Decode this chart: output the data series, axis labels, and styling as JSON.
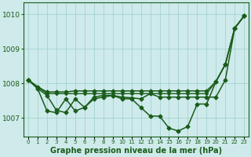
{
  "background_color": "#ceeaea",
  "grid_color": "#9ecece",
  "line_color": "#1a5c1a",
  "title": "Graphe pression niveau de la mer (hPa)",
  "ylabel_ticks": [
    1007,
    1008,
    1009,
    1010
  ],
  "xlim": [
    -0.5,
    23.5
  ],
  "ylim": [
    1006.45,
    1010.35
  ],
  "x_ticks": [
    0,
    1,
    2,
    3,
    4,
    5,
    6,
    7,
    8,
    9,
    10,
    11,
    12,
    13,
    14,
    15,
    16,
    17,
    18,
    19,
    20,
    21,
    22,
    23
  ],
  "series": [
    {
      "x": [
        0,
        1,
        2,
        3,
        4,
        5,
        6,
        7,
        8,
        9,
        10,
        11,
        12,
        13,
        14,
        15,
        16,
        17,
        18,
        19,
        20,
        21,
        22,
        23
      ],
      "y": [
        1008.1,
        1007.9,
        1007.75,
        1007.75,
        1007.75,
        1007.78,
        1007.78,
        1007.78,
        1007.78,
        1007.78,
        1007.78,
        1007.78,
        1007.78,
        1007.78,
        1007.78,
        1007.78,
        1007.78,
        1007.78,
        1007.78,
        1007.78,
        1008.05,
        1008.55,
        1009.6,
        1009.95
      ],
      "marker": "D",
      "markersize": 2.5,
      "linewidth": 1.1
    },
    {
      "x": [
        0,
        1,
        2,
        3,
        4,
        5,
        6,
        7,
        8,
        9,
        10,
        11,
        12,
        13,
        14,
        15,
        16,
        17,
        18,
        19,
        20,
        21,
        22,
        23
      ],
      "y": [
        1008.1,
        1007.9,
        1007.7,
        1007.7,
        1007.7,
        1007.7,
        1007.7,
        1007.7,
        1007.7,
        1007.7,
        1007.7,
        1007.7,
        1007.7,
        1007.7,
        1007.7,
        1007.7,
        1007.7,
        1007.7,
        1007.7,
        1007.7,
        1008.05,
        1008.55,
        1009.6,
        1009.95
      ],
      "marker": "D",
      "markersize": 2.0,
      "linewidth": 1.0
    },
    {
      "x": [
        0,
        1,
        2,
        3,
        4,
        5,
        6,
        7,
        8,
        9,
        10,
        11,
        12,
        13,
        14,
        15,
        16,
        17,
        18,
        19,
        20,
        21,
        22,
        23
      ],
      "y": [
        1008.1,
        1007.85,
        1007.65,
        1007.22,
        1007.15,
        1007.55,
        1007.3,
        1007.6,
        1007.65,
        1007.65,
        1007.6,
        1007.58,
        1007.55,
        1007.7,
        1007.6,
        1007.6,
        1007.6,
        1007.6,
        1007.6,
        1007.6,
        1007.6,
        1008.1,
        1009.6,
        1009.95
      ],
      "marker": "D",
      "markersize": 2.5,
      "linewidth": 1.1
    },
    {
      "x": [
        0,
        1,
        2,
        3,
        4,
        5,
        6,
        7,
        8,
        9,
        10,
        11,
        12,
        13,
        14,
        15,
        16,
        17,
        18,
        19,
        20,
        21,
        22,
        23
      ],
      "y": [
        1008.1,
        1007.85,
        1007.2,
        1007.15,
        1007.55,
        1007.2,
        1007.3,
        1007.55,
        1007.6,
        1007.65,
        1007.55,
        1007.55,
        1007.3,
        1007.05,
        1007.05,
        1006.7,
        1006.62,
        1006.75,
        1007.4,
        1007.4,
        1008.05,
        1008.55,
        1009.6,
        1009.95
      ],
      "marker": "D",
      "markersize": 2.5,
      "linewidth": 1.1
    }
  ]
}
